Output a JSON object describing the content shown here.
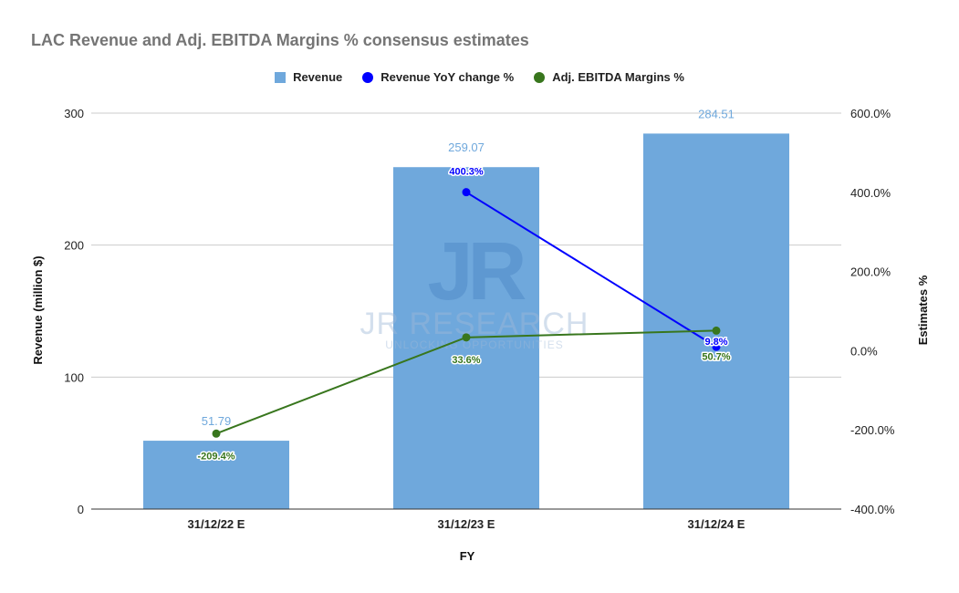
{
  "chart_data": {
    "type": "bar",
    "title": "LAC Revenue and Adj. EBITDA Margins % consensus estimates",
    "xlabel": "FY",
    "ylabel": "Revenue (million $)",
    "y2label": "Estimates %",
    "categories": [
      "31/12/22 E",
      "31/12/23 E",
      "31/12/24 E"
    ],
    "ylim": [
      0,
      300
    ],
    "yticks": [
      "0",
      "100",
      "200",
      "300"
    ],
    "y2lim": [
      -400,
      600
    ],
    "y2ticks": [
      "-400.0%",
      "-200.0%",
      "0.0%",
      "200.0%",
      "400.0%",
      "600.0%"
    ],
    "grid": true,
    "legend_position": "top",
    "series": [
      {
        "name": "Revenue",
        "kind": "bar",
        "axis": "left",
        "color": "#6fa8dc",
        "values": [
          51.79,
          259.07,
          284.51
        ],
        "labels": [
          "51.79",
          "259.07",
          "284.51"
        ]
      },
      {
        "name": "Revenue YoY change %",
        "kind": "line",
        "axis": "right",
        "color": "#0000ff",
        "values": [
          null,
          400.3,
          9.8
        ],
        "labels": [
          "",
          "400.3%",
          "9.8%"
        ]
      },
      {
        "name": "Adj. EBITDA Margins %",
        "kind": "line",
        "axis": "right",
        "color": "#38761d",
        "values": [
          -209.4,
          33.6,
          50.7
        ],
        "labels": [
          "-209.4%",
          "33.6%",
          "50.7%"
        ]
      }
    ]
  },
  "watermark": {
    "monogram": "JR",
    "name": "JR RESEARCH",
    "tagline": "UNLOCKING OPPORTUNITIES"
  }
}
